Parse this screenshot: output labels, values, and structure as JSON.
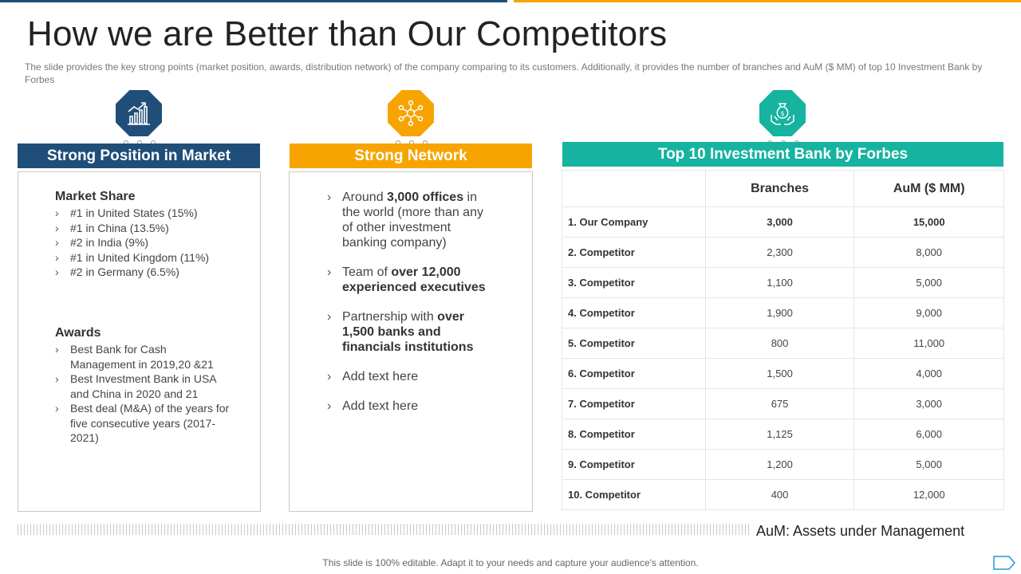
{
  "slide": {
    "title": "How we are Better than Our Competitors",
    "subtitle": "The slide provides  the key strong points (market position, awards, distribution network) of the company comparing to its customers. Additionally, it provides  the number  of branches  and AuM ($ MM) of top 10 Investment  Bank by Forbes"
  },
  "colors": {
    "navy": "#1f4e79",
    "orange": "#f7a400",
    "teal": "#16b3a0"
  },
  "icons": [
    "bar-chart-growth-icon",
    "network-nodes-icon",
    "money-bag-hands-icon"
  ],
  "col1": {
    "header": "Strong Position in Market",
    "market_share_title": "Market Share",
    "market_share": [
      "#1 in United States (15%)",
      "#1 in China (13.5%)",
      "#2 in India (9%)",
      "#1 in United Kingdom (11%)",
      "#2 in Germany (6.5%)"
    ],
    "awards_title": "Awards",
    "awards": [
      "Best Bank for Cash Management in 2019,20 &21",
      "Best Investment Bank in USA and China in 2020 and 21",
      "Best deal (M&A) of the years for five consecutive years (2017-2021)"
    ]
  },
  "col2": {
    "header": "Strong Network",
    "items": [
      {
        "pre": "Around ",
        "bold": "3,000 offices",
        "post": " in the world (more than any of other investment banking company)"
      },
      {
        "pre": "Team of ",
        "bold": "over 12,000 experienced executives",
        "post": ""
      },
      {
        "pre": "Partnership with ",
        "bold": "over 1,500 banks and financials institutions",
        "post": ""
      },
      {
        "pre": "Add text here",
        "bold": "",
        "post": ""
      },
      {
        "pre": "Add text here",
        "bold": "",
        "post": ""
      }
    ]
  },
  "col3": {
    "header": "Top 10 Investment Bank by Forbes",
    "columns": [
      "Branches",
      "AuM ($ MM)"
    ],
    "rows": [
      {
        "name": "1. Our Company",
        "branches": "3,000",
        "aum": "15,000"
      },
      {
        "name": "2. Competitor",
        "branches": "2,300",
        "aum": "8,000"
      },
      {
        "name": "3. Competitor",
        "branches": "1,100",
        "aum": "5,000"
      },
      {
        "name": "4. Competitor",
        "branches": "1,900",
        "aum": "9,000"
      },
      {
        "name": "5. Competitor",
        "branches": "800",
        "aum": "11,000"
      },
      {
        "name": "6. Competitor",
        "branches": "1,500",
        "aum": "4,000"
      },
      {
        "name": "7. Competitor",
        "branches": "675",
        "aum": "3,000"
      },
      {
        "name": "8. Competitor",
        "branches": "1,125",
        "aum": "6,000"
      },
      {
        "name": "9. Competitor",
        "branches": "1,200",
        "aum": "5,000"
      },
      {
        "name": "10. Competitor",
        "branches": "400",
        "aum": "12,000"
      }
    ]
  },
  "note": "AuM: Assets under Management",
  "footer": "This slide is 100% editable. Adapt it to your needs and capture your audience's attention."
}
